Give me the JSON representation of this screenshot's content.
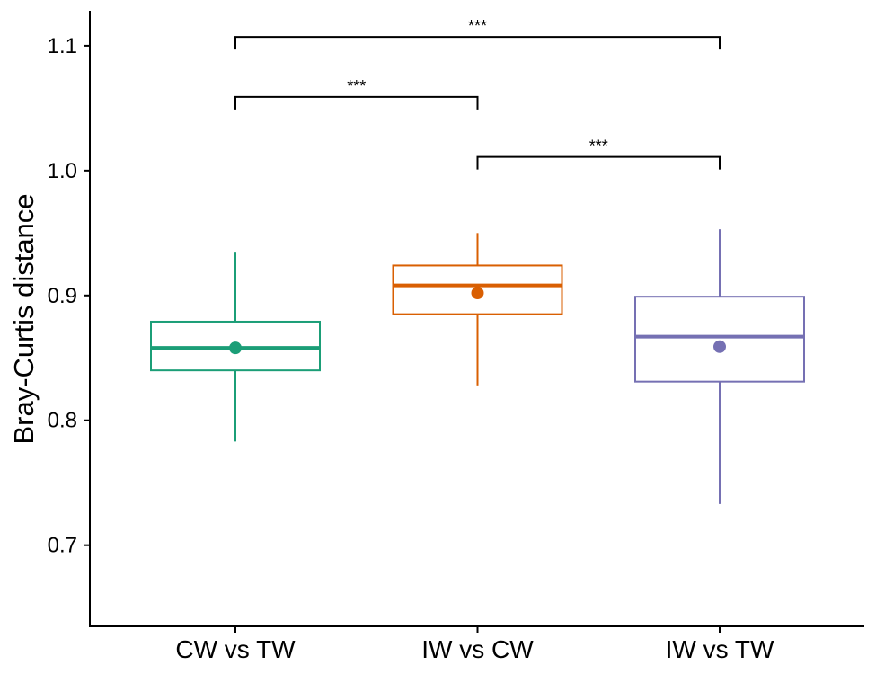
{
  "chart_data": {
    "type": "box",
    "title": "",
    "xlabel": "",
    "ylabel": "Bray-Curtis distance",
    "ylim": [
      0.635,
      1.128
    ],
    "yticks": [
      0.7,
      0.8,
      0.9,
      1.0,
      1.1
    ],
    "ytick_labels": [
      "0.7",
      "0.8",
      "0.9",
      "1.0",
      "1.1"
    ],
    "grid": false,
    "legend": "none",
    "categories": [
      "CW vs TW",
      "IW vs CW",
      "IW vs TW"
    ],
    "boxes": [
      {
        "category": "CW vs TW",
        "whisker_low": 0.783,
        "q1": 0.84,
        "median": 0.858,
        "q3": 0.879,
        "whisker_high": 0.935,
        "mean": 0.858,
        "color": "#1b9e77"
      },
      {
        "category": "IW vs CW",
        "whisker_low": 0.828,
        "q1": 0.885,
        "median": 0.908,
        "q3": 0.924,
        "whisker_high": 0.95,
        "mean": 0.902,
        "color": "#d95f02"
      },
      {
        "category": "IW vs TW",
        "whisker_low": 0.733,
        "q1": 0.831,
        "median": 0.867,
        "q3": 0.899,
        "whisker_high": 0.953,
        "mean": 0.859,
        "color": "#7570b3"
      }
    ],
    "significance": [
      {
        "from": "CW vs TW",
        "to": "IW vs CW",
        "y": 1.059,
        "label": "***"
      },
      {
        "from": "IW vs CW",
        "to": "IW vs TW",
        "y": 1.011,
        "label": "***"
      },
      {
        "from": "CW vs TW",
        "to": "IW vs TW",
        "y": 1.107,
        "label": "***"
      }
    ]
  }
}
